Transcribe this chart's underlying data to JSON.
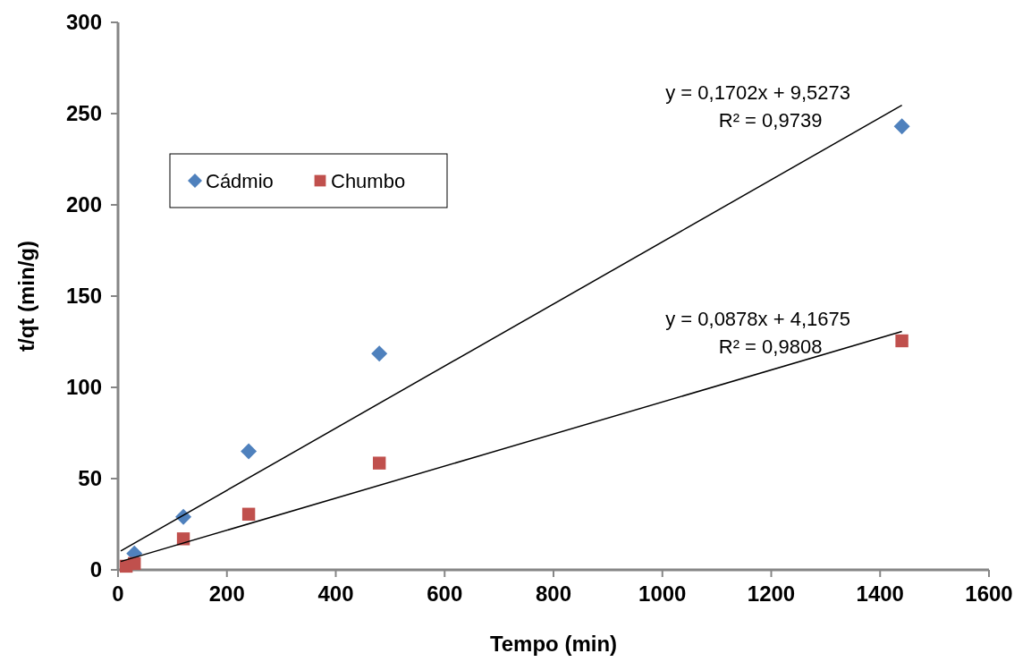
{
  "chart_data": {
    "type": "scatter",
    "xlabel": "Tempo (min)",
    "ylabel": "t/qt (min/g)",
    "xlim": [
      0,
      1600
    ],
    "ylim": [
      0,
      300
    ],
    "xticks": [
      0,
      200,
      400,
      600,
      800,
      1000,
      1200,
      1400,
      1600
    ],
    "yticks": [
      0,
      50,
      100,
      150,
      200,
      250,
      300
    ],
    "grid": false,
    "legend": "top left",
    "series": [
      {
        "name": "Cádmio",
        "color": "#4f81bd",
        "marker": "diamond",
        "x": [
          30,
          120,
          240,
          480,
          1440
        ],
        "values": [
          9,
          29,
          65,
          118.5,
          243
        ]
      },
      {
        "name": "Chumbo",
        "color": "#c0504d",
        "marker": "square",
        "x": [
          15,
          30,
          120,
          240,
          480,
          1440
        ],
        "values": [
          2,
          3.5,
          17,
          30.5,
          58.5,
          125.5
        ]
      },
      {
        "type": "line",
        "color": "#000000",
        "marker": "none",
        "x": [
          5,
          1440
        ],
        "values": [
          10.4,
          254.6
        ]
      },
      {
        "type": "line",
        "color": "#000000",
        "marker": "none",
        "x": [
          5,
          1440
        ],
        "values": [
          4.6,
          130.6
        ]
      }
    ],
    "annotations": [
      "y = 0,1702x + 9,5273",
      "R² = 0,9739",
      "y = 0,0878x + 4,1675",
      "R² = 0,9808"
    ]
  }
}
